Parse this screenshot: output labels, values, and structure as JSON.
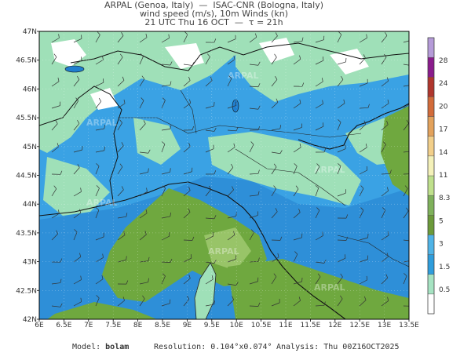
{
  "header": {
    "line1": "ARPAL (Genoa, Italy)  —  ISAC-CNR (Bologna, Italy)",
    "line2": "wind speed (m/s), 10m Winds (kn)",
    "line3": "21 UTC Thu 16 OCT  —  τ = 21h"
  },
  "map": {
    "lat_labels": [
      "47N",
      "46.5N",
      "46N",
      "45.5N",
      "45N",
      "44.5N",
      "44N",
      "43.5N",
      "43N",
      "42.5N",
      "42N"
    ],
    "lon_labels": [
      "6E",
      "6.5E",
      "7E",
      "7.5E",
      "8E",
      "8.5E",
      "9E",
      "9.5E",
      "10E",
      "10.5E",
      "11E",
      "11.5E",
      "12E",
      "12.5E",
      "13E",
      "13.5E"
    ],
    "watermark": "ARPAL"
  },
  "colorbar": {
    "labels": [
      "28",
      "24",
      "20",
      "17",
      "14",
      "11",
      "8.3",
      "5",
      "3",
      "1.5",
      "0.5"
    ],
    "colors": [
      "#ffffff",
      "#a6e3c2",
      "#2f9ddc",
      "#4fb3e6",
      "#6c9a3a",
      "#7fb15b",
      "#bfe08c",
      "#f4f1b9",
      "#f2cf8a",
      "#e3a25c",
      "#d26b3a",
      "#b0362d",
      "#8a1c8c",
      "#b59bd8"
    ]
  },
  "footer": {
    "model_label": "Model:",
    "model_value": "bolam",
    "resolution_label": "Resolution:",
    "resolution_value": "0.104°x0.074°",
    "analysis_label": "Analysis:",
    "analysis_value": "Thu 00Z16OCT2025"
  }
}
